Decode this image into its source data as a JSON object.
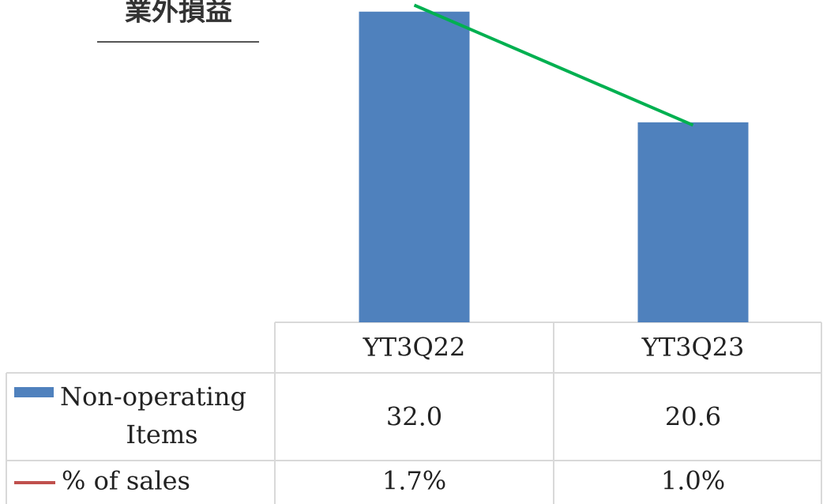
{
  "chart_data": {
    "type": "bar",
    "title": "業外損益",
    "categories": [
      "YT3Q22",
      "YT3Q23"
    ],
    "ylim": [
      0,
      33.2
    ],
    "y2lim": [
      -0.15,
      1.73
    ],
    "series": [
      {
        "name": "Non-operating Items",
        "type": "bar",
        "color": "#4f81bd",
        "values": [
          32.0,
          20.6
        ],
        "value_labels": [
          "32.0",
          "20.6"
        ]
      },
      {
        "name": "% of sales",
        "type": "line",
        "axis": "y2",
        "color": "#00b050",
        "legend_color": "#c0504d",
        "values": [
          1.7,
          1.0
        ],
        "value_labels": [
          "1.7%",
          "1.0%"
        ]
      }
    ]
  }
}
